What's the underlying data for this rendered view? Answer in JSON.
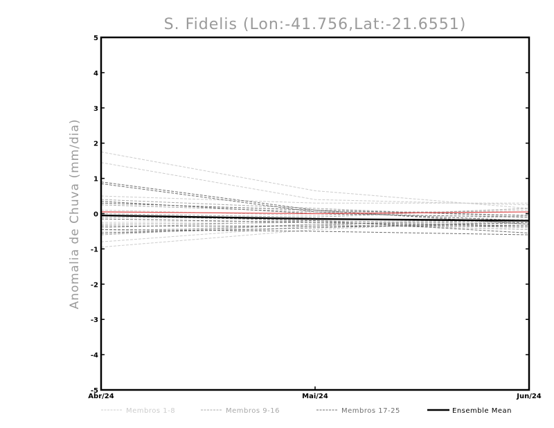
{
  "chart_data": {
    "type": "line",
    "title": "S. Fidelis (Lon:-41.756,Lat:-21.6551)",
    "xlabel": "",
    "ylabel": "Anomalia de Chuva (mm/dia)",
    "x": [
      "Abr/24",
      "Mai/24",
      "Jun/24"
    ],
    "ylim": [
      -5,
      5
    ],
    "yticks": [
      -5,
      -4,
      -3,
      -2,
      -1,
      0,
      1,
      2,
      3,
      4,
      5
    ],
    "grid": false,
    "legend_position": "bottom",
    "legend": [
      {
        "label": "Membros 1-8",
        "color": "#cccccc",
        "style": "dashed"
      },
      {
        "label": "Membros 9-16",
        "color": "#a8a8a8",
        "style": "dashed"
      },
      {
        "label": "Membros 17-25",
        "color": "#6e6e6e",
        "style": "dashed"
      },
      {
        "label": "Ensemble Mean",
        "color": "#000000",
        "style": "solid"
      }
    ],
    "series": [
      {
        "group": 0,
        "values": [
          1.75,
          0.65,
          0.15
        ]
      },
      {
        "group": 0,
        "values": [
          1.45,
          0.4,
          0.25
        ]
      },
      {
        "group": 0,
        "values": [
          -0.95,
          -0.45,
          -0.2
        ]
      },
      {
        "group": 0,
        "values": [
          -0.8,
          -0.35,
          -0.05
        ]
      },
      {
        "group": 0,
        "values": [
          0.5,
          0.3,
          0.3
        ]
      },
      {
        "group": 0,
        "values": [
          -0.5,
          -0.3,
          -0.15
        ]
      },
      {
        "group": 0,
        "values": [
          0.1,
          -0.05,
          0.1
        ]
      },
      {
        "group": 0,
        "values": [
          -0.25,
          -0.2,
          -0.35
        ]
      },
      {
        "group": 1,
        "values": [
          0.4,
          0.15,
          -0.1
        ]
      },
      {
        "group": 1,
        "values": [
          0.25,
          0.05,
          0.05
        ]
      },
      {
        "group": 1,
        "values": [
          -0.1,
          -0.15,
          -0.25
        ]
      },
      {
        "group": 1,
        "values": [
          -0.55,
          -0.3,
          -0.2
        ]
      },
      {
        "group": 1,
        "values": [
          -0.3,
          -0.25,
          -0.4
        ]
      },
      {
        "group": 1,
        "values": [
          0.0,
          -0.1,
          0.15
        ]
      },
      {
        "group": 1,
        "values": [
          -0.4,
          -0.2,
          -0.3
        ]
      },
      {
        "group": 1,
        "values": [
          -0.6,
          -0.3,
          -0.45
        ]
      },
      {
        "group": 2,
        "values": [
          0.9,
          0.1,
          -0.3
        ]
      },
      {
        "group": 2,
        "values": [
          0.85,
          0.05,
          -0.2
        ]
      },
      {
        "group": 2,
        "values": [
          0.35,
          0.0,
          -0.1
        ]
      },
      {
        "group": 2,
        "values": [
          0.3,
          0.1,
          -0.05
        ]
      },
      {
        "group": 2,
        "values": [
          -0.05,
          -0.2,
          -0.55
        ]
      },
      {
        "group": 2,
        "values": [
          -0.35,
          -0.35,
          -0.35
        ]
      },
      {
        "group": 2,
        "values": [
          -0.45,
          -0.5,
          -0.6
        ]
      },
      {
        "group": 2,
        "values": [
          -0.55,
          -0.4,
          -0.25
        ]
      },
      {
        "group": 2,
        "values": [
          -0.15,
          -0.25,
          -0.35
        ]
      },
      {
        "group": 3,
        "values": [
          0.05,
          0.0,
          0.05
        ]
      },
      {
        "group": 4,
        "values": [
          -0.05,
          -0.15,
          -0.2
        ]
      }
    ]
  }
}
